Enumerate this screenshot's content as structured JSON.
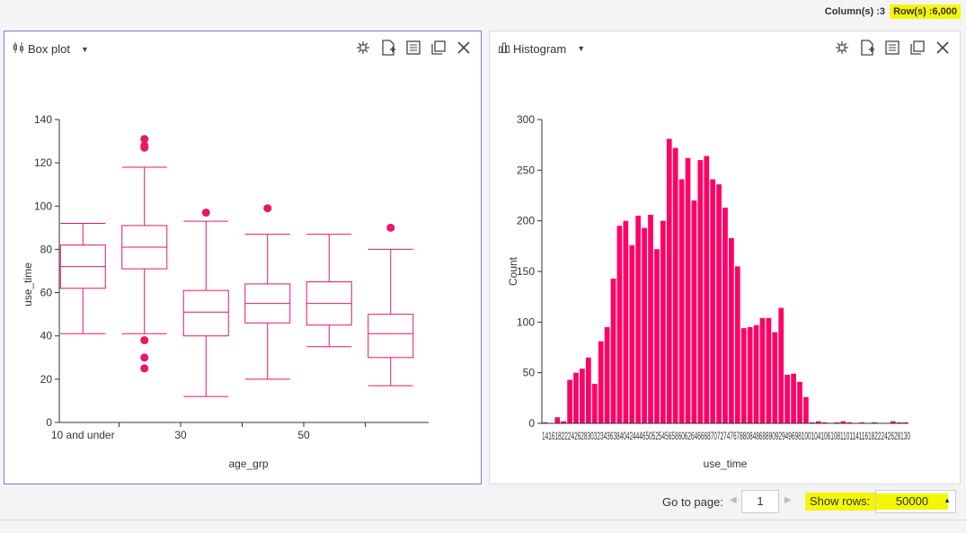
{
  "header": {
    "columns_text": "Column(s) :3",
    "rows_text": "Row(s) :6,000"
  },
  "left_panel": {
    "title": "Box plot",
    "icons": [
      "boxplot-chart-icon",
      "caret-down-icon",
      "scatter-settings-icon",
      "add-document-icon",
      "table-view-icon",
      "duplicate-icon",
      "close-icon"
    ]
  },
  "right_panel": {
    "title": "Histogram",
    "icons": [
      "histogram-chart-icon",
      "caret-down-icon",
      "scatter-settings-icon",
      "add-document-icon",
      "table-view-icon",
      "duplicate-icon",
      "close-icon"
    ]
  },
  "chart_data": [
    {
      "type": "box",
      "xlabel": "age_grp",
      "ylabel": "use_time",
      "ylim": [
        0,
        140
      ],
      "yticks": [
        0,
        20,
        40,
        60,
        80,
        100,
        120,
        140
      ],
      "xtick_labels": [
        "10 and under",
        "",
        "30",
        "",
        "50",
        ""
      ],
      "color": "#e8176b",
      "boxes": [
        {
          "min": 41,
          "q1": 62,
          "median": 72,
          "q3": 82,
          "max": 92,
          "outliers": []
        },
        {
          "min": 41,
          "q1": 71,
          "median": 81,
          "q3": 91,
          "max": 118,
          "outliers": [
            38,
            30,
            25,
            127,
            128,
            131
          ]
        },
        {
          "min": 12,
          "q1": 40,
          "median": 51,
          "q3": 61,
          "max": 93,
          "outliers": [
            97
          ]
        },
        {
          "min": 20,
          "q1": 46,
          "median": 55,
          "q3": 64,
          "max": 87,
          "outliers": [
            99
          ]
        },
        {
          "min": 35,
          "q1": 45,
          "median": 55,
          "q3": 65,
          "max": 87,
          "outliers": []
        },
        {
          "min": 17,
          "q1": 30,
          "median": 41,
          "q3": 50,
          "max": 80,
          "outliers": [
            90
          ]
        }
      ]
    },
    {
      "type": "bar",
      "xlabel": "use_time",
      "ylabel": "Count",
      "ylim": [
        0,
        300
      ],
      "yticks": [
        0,
        50,
        100,
        150,
        200,
        250,
        300
      ],
      "color": "#ff0066",
      "tick_text": "141618222426283032343638404244465052545658606264666870727476788084868890929496981001041061081101141161822242628130",
      "values": [
        1,
        0,
        6,
        2,
        43,
        50,
        54,
        65,
        39,
        81,
        95,
        143,
        195,
        200,
        176,
        205,
        193,
        206,
        172,
        200,
        281,
        272,
        241,
        262,
        220,
        260,
        264,
        241,
        236,
        213,
        183,
        155,
        94,
        95,
        97,
        104,
        104,
        90,
        114,
        48,
        49,
        41,
        26,
        1,
        2,
        1,
        0,
        1,
        2,
        1,
        0,
        1,
        0,
        1,
        0,
        0,
        2,
        1,
        1
      ]
    }
  ],
  "footer": {
    "goto_label": "Go to page:",
    "page_value": "1",
    "show_rows_label": "Show rows:",
    "rows_value": "50000"
  }
}
